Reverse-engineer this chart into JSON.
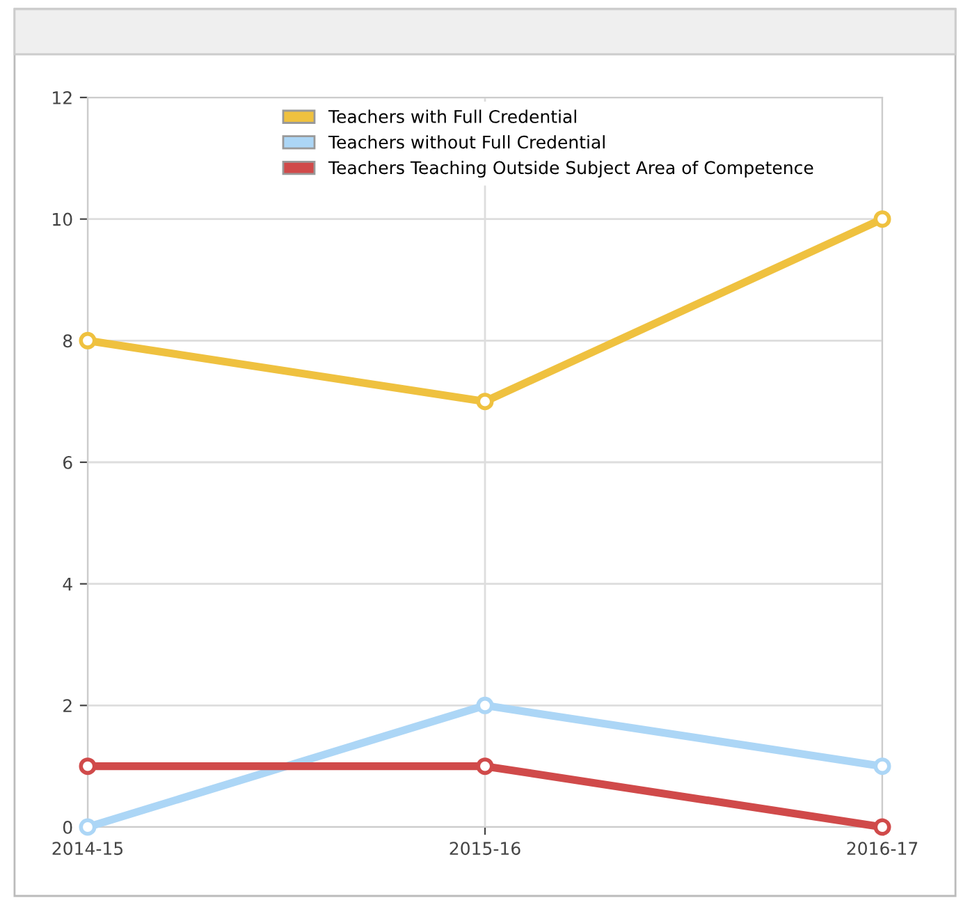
{
  "chart_data": {
    "type": "line",
    "categories": [
      "2014-15",
      "2015-16",
      "2016-17"
    ],
    "series": [
      {
        "name": "Teachers with Full Credential",
        "color": "#efc13f",
        "values": [
          8,
          7,
          10
        ]
      },
      {
        "name": "Teachers without Full Credential",
        "color": "#acd6f6",
        "values": [
          0,
          2,
          1
        ]
      },
      {
        "name": "Teachers Teaching Outside Subject Area of Competence",
        "color": "#d04a4a",
        "values": [
          1,
          1,
          0
        ]
      }
    ],
    "ylim": [
      0,
      12
    ],
    "yticks": [
      0,
      2,
      4,
      6,
      8,
      10,
      12
    ],
    "grid": true,
    "legend": "top",
    "marker": "circle",
    "line_style": "solid"
  }
}
